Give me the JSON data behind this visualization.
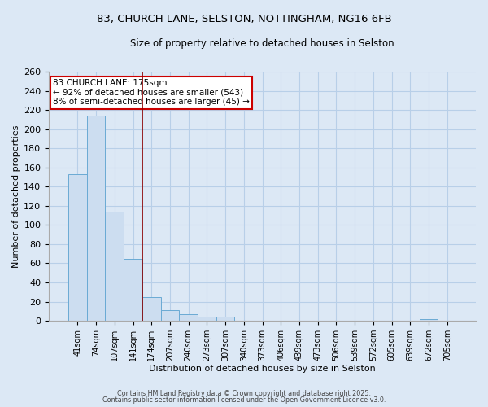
{
  "title_line1": "83, CHURCH LANE, SELSTON, NOTTINGHAM, NG16 6FB",
  "title_line2": "Size of property relative to detached houses in Selston",
  "xlabel": "Distribution of detached houses by size in Selston",
  "ylabel": "Number of detached properties",
  "categories": [
    "41sqm",
    "74sqm",
    "107sqm",
    "141sqm",
    "174sqm",
    "207sqm",
    "240sqm",
    "273sqm",
    "307sqm",
    "340sqm",
    "373sqm",
    "406sqm",
    "439sqm",
    "473sqm",
    "506sqm",
    "539sqm",
    "572sqm",
    "605sqm",
    "639sqm",
    "672sqm",
    "705sqm"
  ],
  "values": [
    153,
    214,
    114,
    65,
    25,
    11,
    7,
    4,
    4,
    0,
    0,
    0,
    0,
    0,
    0,
    0,
    0,
    0,
    0,
    2,
    0
  ],
  "bar_color": "#ccddf0",
  "bar_edge_color": "#6aaad4",
  "background_color": "#dce8f5",
  "grid_color": "#b8cfe8",
  "property_line_color": "#8b0000",
  "property_line_index": 3.5,
  "annotation_text": "83 CHURCH LANE: 175sqm\n← 92% of detached houses are smaller (543)\n8% of semi-detached houses are larger (45) →",
  "annotation_box_facecolor": "#ffffff",
  "annotation_box_edgecolor": "#cc0000",
  "ylim": [
    0,
    260
  ],
  "yticks": [
    0,
    20,
    40,
    60,
    80,
    100,
    120,
    140,
    160,
    180,
    200,
    220,
    240,
    260
  ],
  "footer_line1": "Contains HM Land Registry data © Crown copyright and database right 2025.",
  "footer_line2": "Contains public sector information licensed under the Open Government Licence v3.0."
}
